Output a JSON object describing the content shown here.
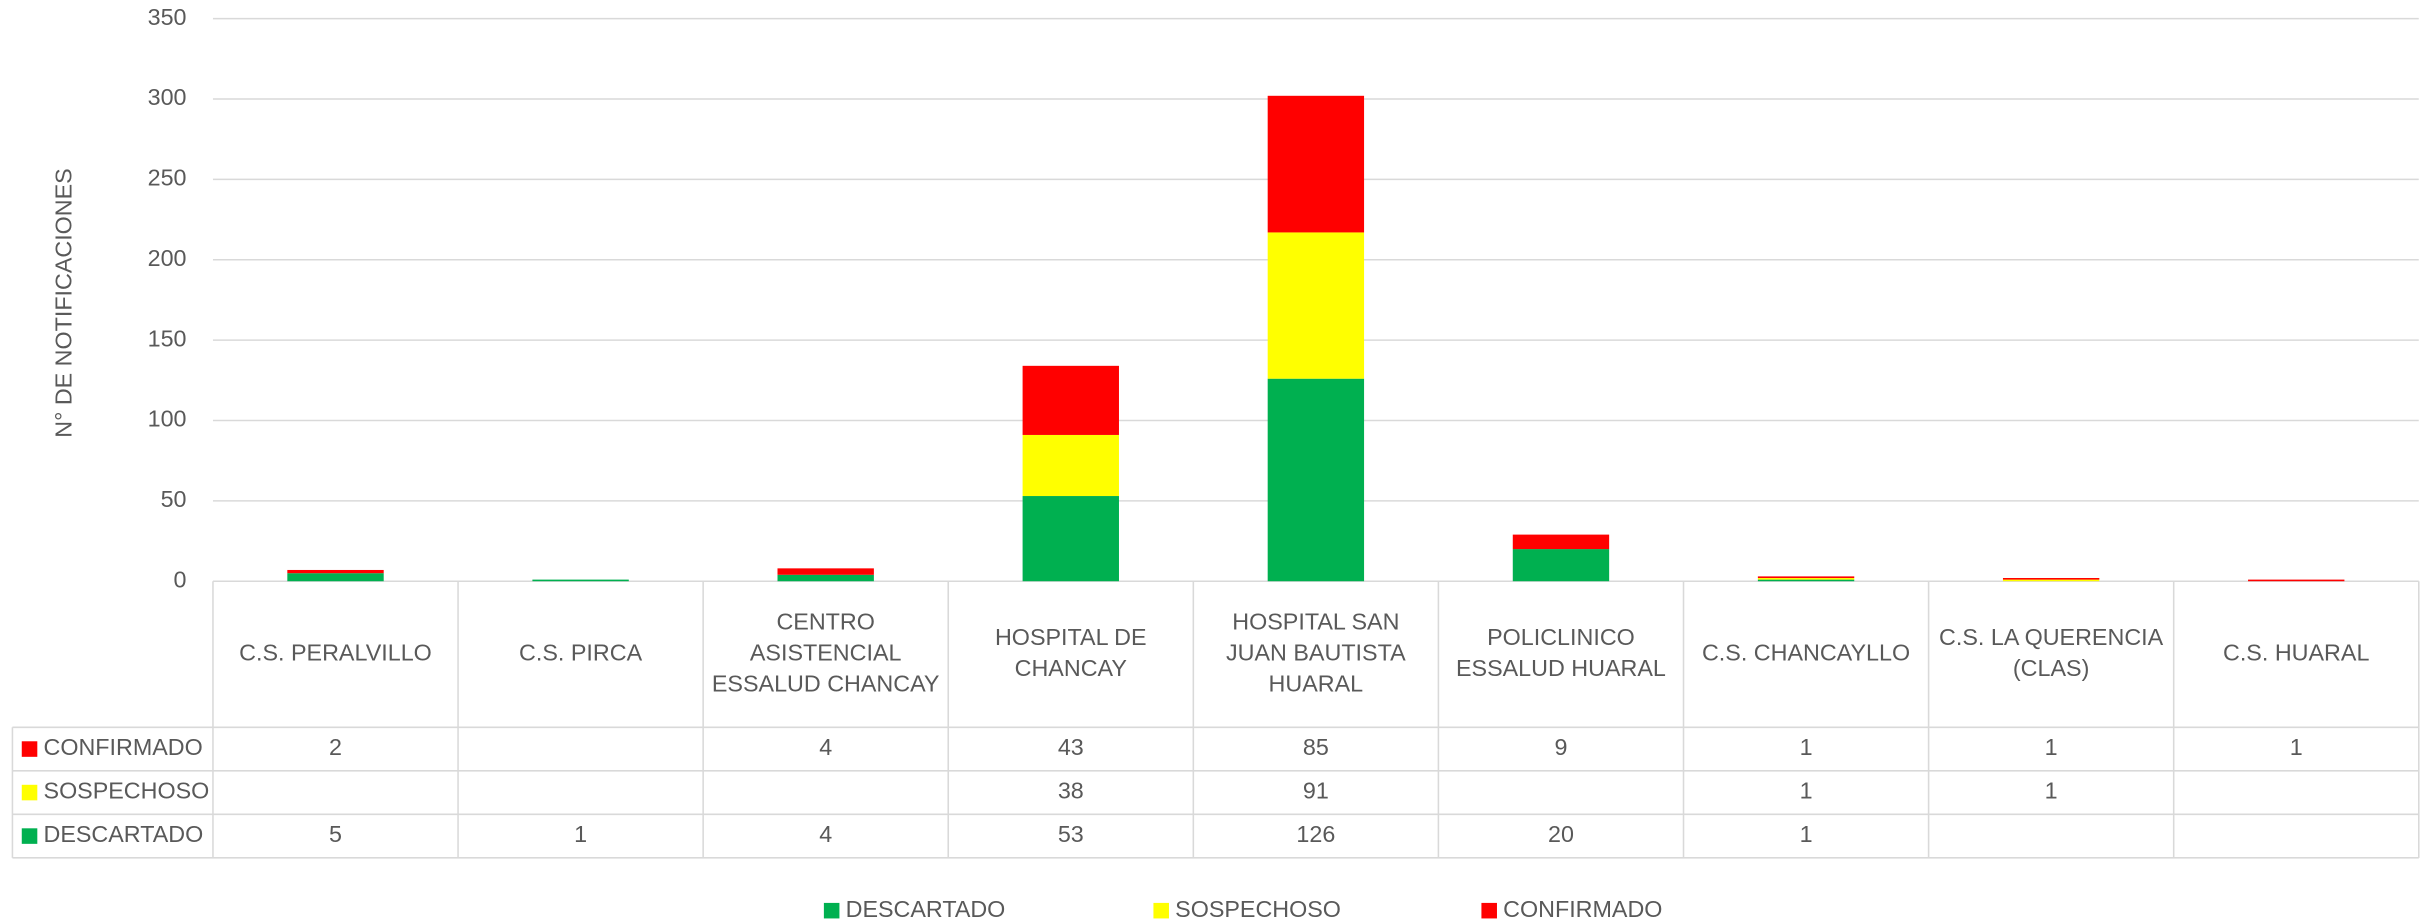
{
  "chart_data": {
    "type": "stacked_bar",
    "y_axis_label": "N° DE NOTIFICACIONES",
    "categories": [
      "C.S. PERALVILLO",
      "C.S. PIRCA",
      "CENTRO ASISTENCIAL ESSALUD CHANCAY",
      "HOSPITAL DE CHANCAY",
      "HOSPITAL SAN JUAN BAUTISTA HUARAL",
      "POLICLINICO ESSALUD HUARAL",
      "C.S. CHANCAYLLO",
      "C.S. LA QUERENCIA (CLAS)",
      "C.S. HUARAL"
    ],
    "series": [
      {
        "name": "DESCARTADO",
        "color": "#00b050",
        "values": [
          5,
          1,
          4,
          53,
          126,
          20,
          1,
          null,
          null
        ]
      },
      {
        "name": "SOSPECHOSO",
        "color": "#ffff00",
        "values": [
          null,
          null,
          null,
          38,
          91,
          null,
          1,
          1,
          null
        ]
      },
      {
        "name": "CONFIRMADO",
        "color": "#ff0000",
        "values": [
          2,
          null,
          4,
          43,
          85,
          9,
          1,
          1,
          1
        ]
      }
    ],
    "ylim": [
      0,
      350
    ],
    "yticks": [
      0,
      50,
      100,
      150,
      200,
      250,
      300,
      350
    ],
    "grid": true,
    "legend": "bottom",
    "data_table": true
  }
}
